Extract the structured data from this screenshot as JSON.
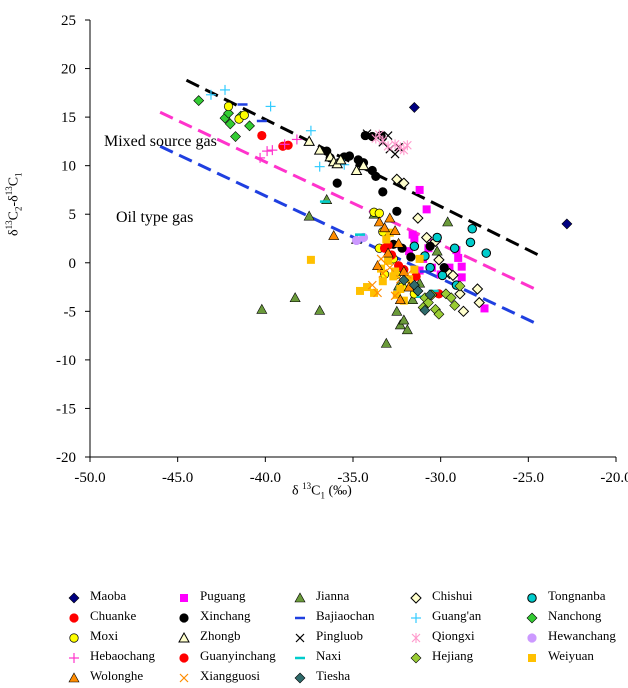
{
  "chart_data": {
    "type": "scatter",
    "xlabel_main": "δ ",
    "xlabel_sup": "13",
    "xlabel_tail": "C",
    "xlabel_sub": "1",
    "xlabel_unit": " (‰)",
    "ylabel_a": "δ",
    "ylabel_b": "13",
    "ylabel_c": "C",
    "ylabel_d": "2",
    "ylabel_e": "-δ",
    "ylabel_f": "13",
    "ylabel_g": "C",
    "ylabel_h": "1",
    "xlim": [
      -50,
      -20
    ],
    "ylim": [
      -20,
      25
    ],
    "x_ticks": [
      "-50.0",
      "-45.0",
      "-40.0",
      "-35.0",
      "-30.0",
      "-25.0",
      "-20.0"
    ],
    "y_ticks": [
      "25",
      "20",
      "15",
      "10",
      "5",
      "0",
      "-5",
      "-10",
      "-15",
      "-20"
    ],
    "annotations": [
      "Mixed source gas",
      "Oil type gas"
    ],
    "trend_lines": [
      {
        "color": "#000000",
        "x": [
          -44.5,
          -24.2
        ],
        "y": [
          18.8,
          0.6
        ]
      },
      {
        "color": "#ff33cc",
        "x": [
          -46,
          -24.5
        ],
        "y": [
          15.5,
          -2.8
        ]
      },
      {
        "color": "#1f3fe0",
        "x": [
          -46,
          -24.5
        ],
        "y": [
          12,
          -6.3
        ]
      }
    ],
    "series": [
      {
        "name": "Maoba",
        "marker": "diamond",
        "color": "#000080",
        "points": [
          [
            -31.5,
            16
          ],
          [
            -22.8,
            4
          ]
        ]
      },
      {
        "name": "Puguang",
        "marker": "square",
        "color": "#ff00ff",
        "points": [
          [
            -31.2,
            7.5
          ],
          [
            -30.8,
            5.5
          ],
          [
            -31.5,
            2.5
          ],
          [
            -31.8,
            1.2
          ],
          [
            -31,
            0.4
          ],
          [
            -30.5,
            -0.5
          ],
          [
            -30,
            -1.2
          ],
          [
            -29.5,
            -0.5
          ],
          [
            -29,
            0.5
          ],
          [
            -28.8,
            -1.5
          ],
          [
            -31.6,
            2.9
          ],
          [
            -31.2,
            -0.8
          ],
          [
            -30.7,
            1.5
          ],
          [
            -28.8,
            -0.4
          ],
          [
            -27.5,
            -4.7
          ],
          [
            -30.2,
            2.5
          ],
          [
            -29.1,
            1.3
          ]
        ]
      },
      {
        "name": "Jianna",
        "marker": "triangle",
        "color": "#6a9a3a",
        "points": [
          [
            -40.2,
            -4.8
          ],
          [
            -38.3,
            -3.6
          ],
          [
            -36.9,
            -4.9
          ],
          [
            -37.5,
            4.8
          ],
          [
            -36.5,
            6.5
          ],
          [
            -34.8,
            2.4
          ],
          [
            -33.8,
            5
          ],
          [
            -33.1,
            -8.3
          ],
          [
            -32.5,
            -5
          ],
          [
            -32.3,
            -6.4
          ],
          [
            -32.1,
            -5.9
          ],
          [
            -31.9,
            -6.9
          ],
          [
            -31.6,
            -3.8
          ],
          [
            -31.2,
            -2.1
          ],
          [
            -30.2,
            1.2
          ],
          [
            -29.6,
            4.2
          ],
          [
            -33,
            1
          ],
          [
            -32.4,
            -2.4
          ]
        ]
      },
      {
        "name": "Chishui",
        "marker": "diamond-hollow",
        "color": "#000000",
        "points": [
          [
            -32.5,
            8.6
          ],
          [
            -32.1,
            8.2
          ],
          [
            -31.3,
            4.6
          ],
          [
            -30.8,
            2.6
          ],
          [
            -30.3,
            2.2
          ],
          [
            -30.1,
            0.3
          ],
          [
            -29.5,
            -1.1
          ],
          [
            -28.9,
            -3.2
          ],
          [
            -28.7,
            -5
          ],
          [
            -27.8,
            -4.1
          ],
          [
            -27.9,
            -2.7
          ],
          [
            -29.3,
            -1.3
          ]
        ]
      },
      {
        "name": "Tongnanba",
        "marker": "circle-hollow",
        "color": "#00cccc",
        "points": [
          [
            -30.2,
            2.6
          ],
          [
            -29.2,
            1.5
          ],
          [
            -28.3,
            2.1
          ],
          [
            -28.2,
            3.5
          ],
          [
            -27.4,
            1
          ],
          [
            -29.9,
            -1.3
          ],
          [
            -30.6,
            -0.5
          ],
          [
            -31.5,
            1.7
          ],
          [
            -30.9,
            0.7
          ],
          [
            -29.1,
            -2.3
          ]
        ]
      },
      {
        "name": "Chuanke",
        "marker": "circle",
        "color": "#ff0000",
        "points": [
          [
            -40.2,
            13.1
          ],
          [
            -39,
            12
          ],
          [
            -38.7,
            12.1
          ],
          [
            -32.1,
            -0.7
          ],
          [
            -31.4,
            -1.4
          ],
          [
            -30.1,
            -3.2
          ]
        ]
      },
      {
        "name": "Xinchang",
        "marker": "circle",
        "color": "#000000",
        "points": [
          [
            -36.5,
            11.5
          ],
          [
            -36.3,
            10.8
          ],
          [
            -35.5,
            10.9
          ],
          [
            -35.2,
            11
          ],
          [
            -34.7,
            10.6
          ],
          [
            -34.4,
            10.3
          ],
          [
            -33.9,
            9.5
          ],
          [
            -33.7,
            8.9
          ],
          [
            -33.3,
            7.3
          ],
          [
            -34.3,
            13.1
          ],
          [
            -33.9,
            13
          ],
          [
            -35.9,
            8.2
          ],
          [
            -32.5,
            5.3
          ],
          [
            -32.7,
            1.9
          ],
          [
            -32.2,
            1.5
          ],
          [
            -30.6,
            1.7
          ],
          [
            -29.8,
            -0.5
          ],
          [
            -33.4,
            13.1
          ],
          [
            -31.7,
            0.6
          ]
        ]
      },
      {
        "name": "Bajiaochan",
        "marker": "dash",
        "color": "#1f3fe0",
        "points": [
          [
            -41.3,
            16.3
          ],
          [
            -40.2,
            14.6
          ],
          [
            -30.9,
            -0.9
          ]
        ]
      },
      {
        "name": "Guang'an",
        "marker": "plus",
        "color": "#33ccff",
        "points": [
          [
            -43.1,
            17.3
          ],
          [
            -42.3,
            17.8
          ],
          [
            -39.7,
            16.1
          ],
          [
            -37.4,
            13.6
          ],
          [
            -36.9,
            9.9
          ],
          [
            -35.5,
            10.1
          ]
        ]
      },
      {
        "name": "Nanchong",
        "marker": "diamond",
        "color": "#33cc33",
        "points": [
          [
            -43.8,
            16.7
          ],
          [
            -42.3,
            14.9
          ],
          [
            -42.0,
            14.3
          ],
          [
            -41.7,
            13
          ],
          [
            -41.4,
            15.1
          ],
          [
            -40.9,
            14.1
          ],
          [
            -42.1,
            15.4
          ]
        ]
      },
      {
        "name": "Moxi",
        "marker": "circle",
        "color": "#ffff00",
        "points": [
          [
            -42.1,
            16.1
          ],
          [
            -41.5,
            14.8
          ],
          [
            -41.2,
            15.2
          ],
          [
            -33.8,
            5.2
          ],
          [
            -33.5,
            5.1
          ],
          [
            -33.3,
            3.2
          ],
          [
            -33.5,
            1.5
          ],
          [
            -32.7,
            0.4
          ],
          [
            -32.5,
            -1.2
          ],
          [
            -32.2,
            -2.5
          ],
          [
            -31.5,
            -3.2
          ],
          [
            -33.2,
            -1.2
          ]
        ]
      },
      {
        "name": "Zhongb",
        "marker": "triangle-hollow",
        "color": "#000000",
        "points": [
          [
            -37.5,
            12.5
          ],
          [
            -36.9,
            11.6
          ],
          [
            -36.3,
            10.9
          ],
          [
            -36.1,
            10.4
          ],
          [
            -35.9,
            10.2
          ],
          [
            -35.7,
            10.6
          ],
          [
            -34.4,
            10
          ],
          [
            -34.8,
            9.5
          ]
        ]
      },
      {
        "name": "Pingluob",
        "marker": "x",
        "color": "#000000",
        "points": [
          [
            -34.2,
            13.3
          ],
          [
            -33.3,
            12.4
          ],
          [
            -32.9,
            11.7
          ],
          [
            -32.6,
            11.2
          ],
          [
            -32.4,
            11.9
          ],
          [
            -33.0,
            13.1
          ]
        ]
      },
      {
        "name": "Qiongxi",
        "marker": "asterisk",
        "color": "#ff99cc",
        "points": [
          [
            -33.7,
            12.8
          ],
          [
            -33.3,
            12.6
          ],
          [
            -33.0,
            12.0
          ],
          [
            -32.6,
            12.2
          ],
          [
            -32.3,
            11.9
          ],
          [
            -32.1,
            11.6
          ],
          [
            -31.9,
            12.1
          ],
          [
            -33.5,
            13.2
          ]
        ]
      },
      {
        "name": "Hewanchang",
        "marker": "circle",
        "color": "#cc99ff",
        "points": [
          [
            -34.8,
            2.3
          ],
          [
            -34.4,
            2.6
          ]
        ]
      },
      {
        "name": "Hebaochang",
        "marker": "plus",
        "color": "#ff33cc",
        "points": [
          [
            -40.3,
            10.8
          ],
          [
            -39.9,
            11.5
          ],
          [
            -39.6,
            11.6
          ],
          [
            -38.9,
            12.2
          ],
          [
            -38.2,
            12.7
          ]
        ]
      },
      {
        "name": "Guanyinchang",
        "marker": "circle",
        "color": "#ff0000",
        "points": [
          [
            -33.2,
            1.5
          ],
          [
            -33.0,
            1.8
          ],
          [
            -32.8,
            0.8
          ],
          [
            -32.4,
            -0.3
          ]
        ]
      },
      {
        "name": "Naxi",
        "marker": "dash",
        "color": "#00cccc",
        "points": [
          [
            -36.6,
            6.3
          ],
          [
            -34.6,
            2.9
          ],
          [
            -31.1,
            -3.5
          ],
          [
            -30.4,
            -2.9
          ]
        ]
      },
      {
        "name": "Hejiang",
        "marker": "diamond",
        "color": "#99cc33",
        "points": [
          [
            -31.3,
            -2.9
          ],
          [
            -30.9,
            -3.6
          ],
          [
            -30.7,
            -4.1
          ],
          [
            -30.3,
            -4.8
          ],
          [
            -30.1,
            -5.3
          ],
          [
            -29.7,
            -3.2
          ],
          [
            -29.4,
            -3.6
          ],
          [
            -28.9,
            -2.4
          ],
          [
            -29.2,
            -4.4
          ],
          [
            -31.0,
            -4.6
          ],
          [
            -30.5,
            -3.3
          ]
        ]
      },
      {
        "name": "Weiyuan",
        "marker": "square",
        "color": "#ffc000",
        "points": [
          [
            -37.4,
            0.3
          ],
          [
            -34.6,
            -2.9
          ],
          [
            -34.2,
            -2.5
          ],
          [
            -33.8,
            -3.1
          ],
          [
            -33.4,
            -0.6
          ],
          [
            -33.1,
            2.4
          ],
          [
            -33.0,
            0.2
          ],
          [
            -32.7,
            -1.4
          ],
          [
            -32.3,
            -2.7
          ],
          [
            -32.1,
            -3.9
          ],
          [
            -31.8,
            -1.7
          ],
          [
            -31.5,
            -0.7
          ],
          [
            -31.2,
            0.4
          ],
          [
            -32.9,
            3.1
          ],
          [
            -32.6,
            -0.9
          ],
          [
            -32.5,
            -3.3
          ],
          [
            -33.3,
            -1.9
          ]
        ]
      },
      {
        "name": "Wolonghe",
        "marker": "triangle",
        "color": "#ff8c00",
        "points": [
          [
            -36.1,
            2.8
          ],
          [
            -33.5,
            4.2
          ],
          [
            -33.2,
            3.6
          ],
          [
            -32.9,
            4.6
          ],
          [
            -32.6,
            3.3
          ],
          [
            -32.4,
            2.0
          ],
          [
            -33.0,
            1.0
          ],
          [
            -32.1,
            -0.9
          ],
          [
            -31.8,
            -2.5
          ],
          [
            -32.3,
            -3.8
          ],
          [
            -33.6,
            -0.3
          ]
        ]
      },
      {
        "name": "Xiangguosi",
        "marker": "x",
        "color": "#ff8c00",
        "points": [
          [
            -33.9,
            -2.3
          ],
          [
            -33.6,
            -3.1
          ],
          [
            -33.3,
            -1.1
          ],
          [
            -32.9,
            -0.5
          ],
          [
            -32.6,
            -3.4
          ],
          [
            -32.3,
            -1.7
          ],
          [
            -33.4,
            0.4
          ],
          [
            -31.9,
            -1.2
          ]
        ]
      },
      {
        "name": "Tiesha",
        "marker": "diamond",
        "color": "#2f6b6b",
        "points": [
          [
            -32.1,
            -1.8
          ],
          [
            -31.5,
            -2.3
          ],
          [
            -31.3,
            -2.9
          ],
          [
            -30.9,
            -4.9
          ],
          [
            -30.6,
            -3.3
          ]
        ]
      }
    ]
  }
}
